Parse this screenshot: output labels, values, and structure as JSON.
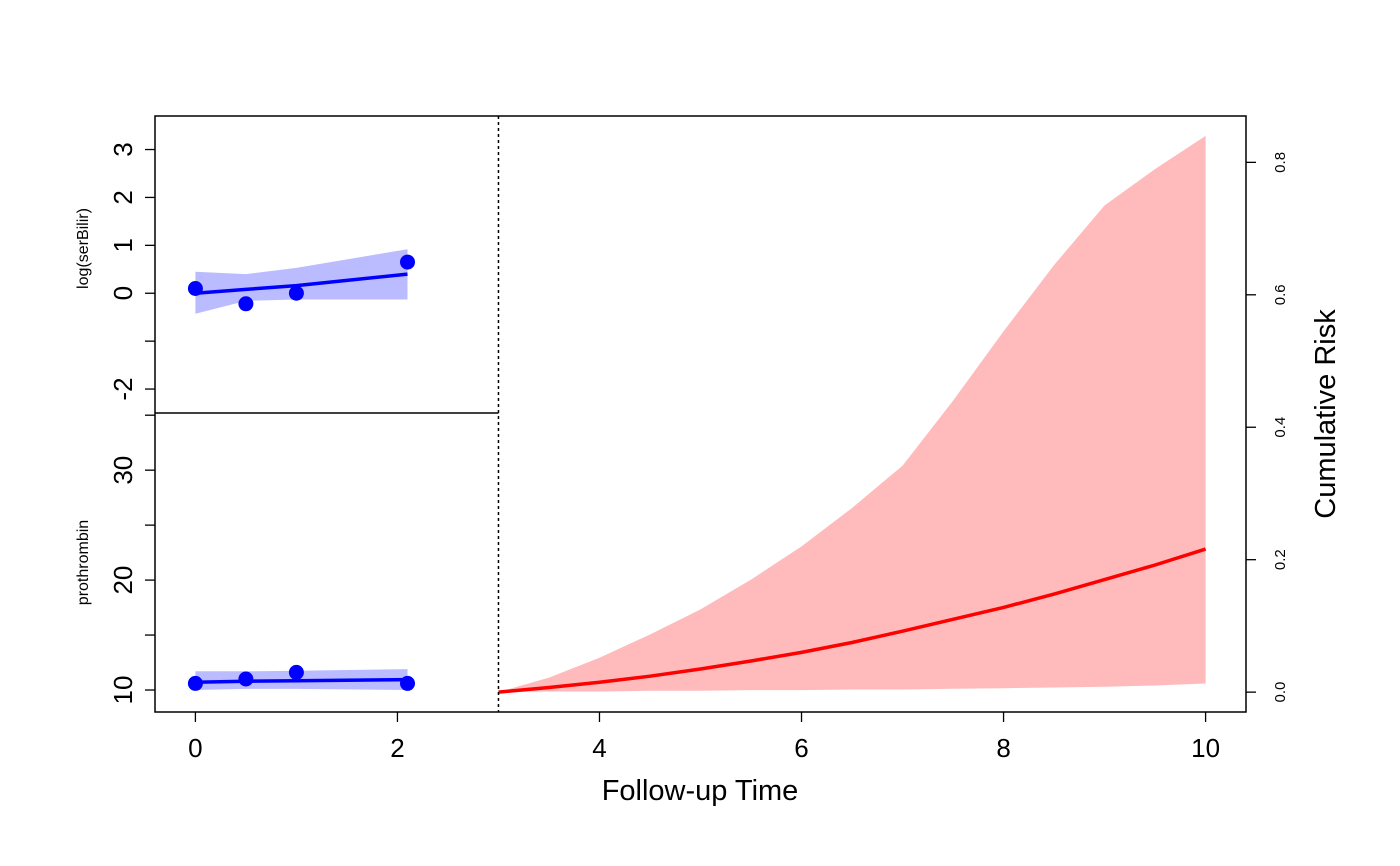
{
  "chart_data": {
    "type": "line",
    "xlabel": "Follow-up Time",
    "right_ylabel": "Cumulative Risk",
    "x_ticks": [
      "0",
      "2",
      "4",
      "6",
      "8",
      "10"
    ],
    "xlim": [
      -0.4,
      10.4
    ],
    "landmark_time": 3,
    "colors": {
      "longitudinal_line": "#0000ff",
      "longitudinal_band": "#bbbbff",
      "risk_line": "#ff0000",
      "risk_band": "#ffbbbb",
      "axis": "#000000"
    },
    "panels": [
      {
        "ylabel": "log(serBilir)",
        "ylim": [
          -2.5,
          3.7
        ],
        "y_ticks": [
          {
            "value": -2,
            "label": "-2"
          },
          {
            "value": -1,
            "label": ""
          },
          {
            "value": 0,
            "label": "0"
          },
          {
            "value": 1,
            "label": "1"
          },
          {
            "value": 2,
            "label": "2"
          },
          {
            "value": 3,
            "label": "3"
          }
        ],
        "observed": {
          "x": [
            0,
            0.5,
            1.0,
            2.1
          ],
          "y": [
            0.1,
            -0.22,
            0.0,
            0.65
          ]
        },
        "fitted": {
          "x": [
            0,
            0.5,
            1.0,
            2.1
          ],
          "y": [
            0.0,
            0.08,
            0.16,
            0.4
          ]
        },
        "band": {
          "x": [
            0,
            0.5,
            1.0,
            2.1
          ],
          "lower": [
            -0.43,
            -0.16,
            -0.13,
            -0.13
          ],
          "upper": [
            0.45,
            0.4,
            0.53,
            0.92
          ]
        }
      },
      {
        "ylabel": "prothrombin",
        "ylim": [
          8.0,
          35.2
        ],
        "y_ticks": [
          {
            "value": 10,
            "label": "10"
          },
          {
            "value": 15,
            "label": ""
          },
          {
            "value": 20,
            "label": "20"
          },
          {
            "value": 25,
            "label": ""
          },
          {
            "value": 30,
            "label": "30"
          },
          {
            "value": 35,
            "label": ""
          }
        ],
        "observed": {
          "x": [
            0,
            0.5,
            1.0,
            2.1
          ],
          "y": [
            10.6,
            11.0,
            11.6,
            10.6
          ]
        },
        "fitted": {
          "x": [
            0,
            0.5,
            1.0,
            2.1
          ],
          "y": [
            10.7,
            10.8,
            10.85,
            10.95
          ]
        },
        "band": {
          "x": [
            0,
            0.5,
            1.0,
            2.1
          ],
          "lower": [
            10.0,
            10.1,
            10.1,
            10.0
          ],
          "upper": [
            11.7,
            11.7,
            11.75,
            11.9
          ]
        }
      }
    ],
    "risk": {
      "ylim": [
        -0.03,
        0.87
      ],
      "y_ticks": [
        "0.0",
        "0.2",
        "0.4",
        "0.6",
        "0.8"
      ],
      "x": [
        3,
        3.5,
        4,
        4.5,
        5,
        5.5,
        6,
        6.5,
        7,
        7.5,
        8,
        8.5,
        9,
        9.5,
        10
      ],
      "estimate": [
        0.0,
        0.007,
        0.015,
        0.024,
        0.035,
        0.047,
        0.06,
        0.075,
        0.092,
        0.11,
        0.128,
        0.148,
        0.17,
        0.192,
        0.216
      ],
      "lower": [
        0.0,
        0.001,
        0.001,
        0.002,
        0.002,
        0.003,
        0.003,
        0.004,
        0.004,
        0.005,
        0.006,
        0.007,
        0.008,
        0.01,
        0.013
      ],
      "upper": [
        0.0,
        0.022,
        0.052,
        0.087,
        0.125,
        0.17,
        0.22,
        0.278,
        0.342,
        0.44,
        0.545,
        0.645,
        0.735,
        0.79,
        0.84
      ]
    }
  }
}
